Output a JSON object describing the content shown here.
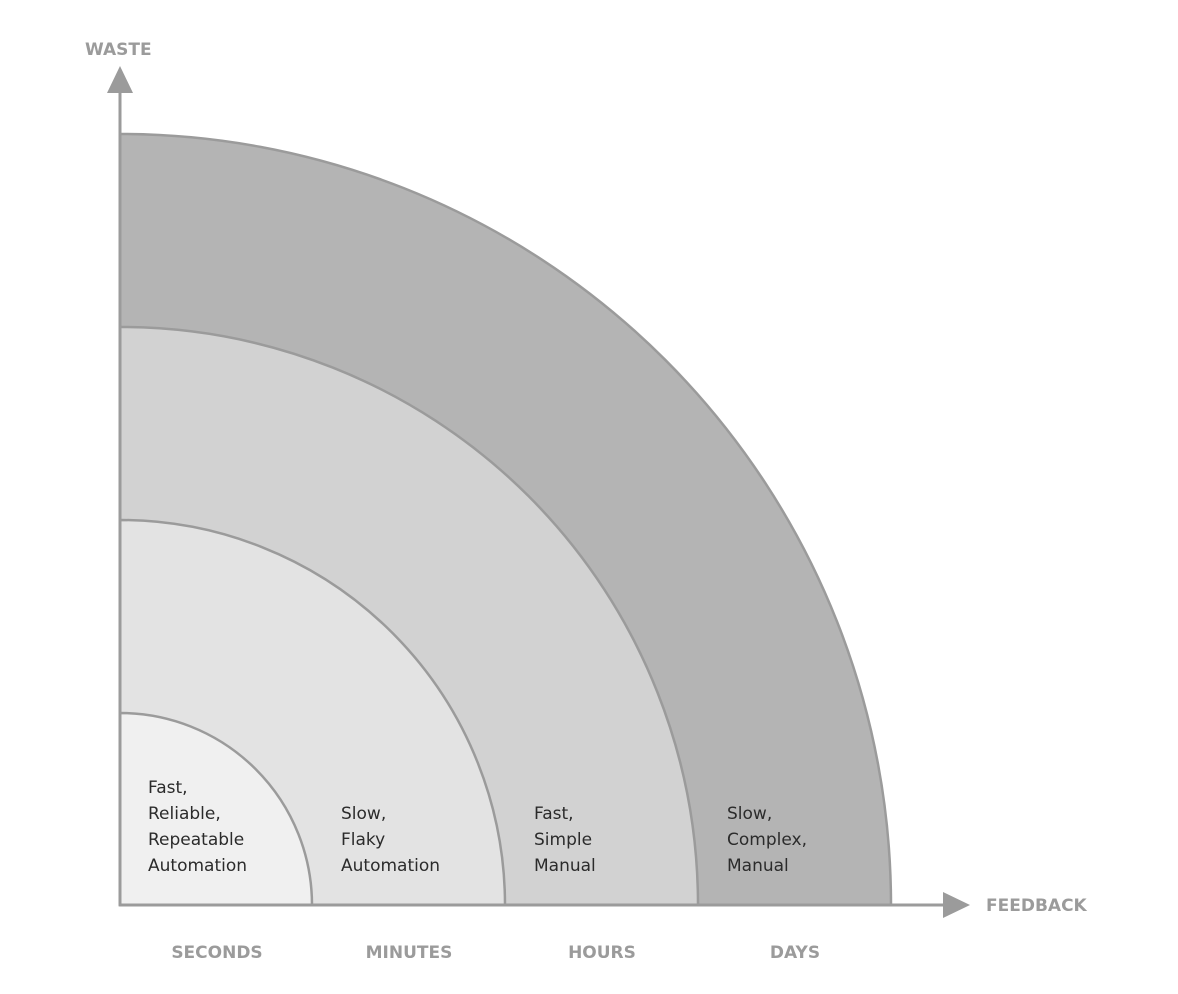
{
  "axes": {
    "y_title": "WASTE",
    "x_title": "FEEDBACK"
  },
  "bands": [
    {
      "time": "SECONDS",
      "lines": [
        "Fast,",
        "Reliable,",
        "Repeatable",
        "Automation"
      ],
      "fill": "#f0f0f0"
    },
    {
      "time": "MINUTES",
      "lines": [
        "Slow,",
        "Flaky",
        "Automation"
      ],
      "fill": "#e3e3e3"
    },
    {
      "time": "HOURS",
      "lines": [
        "Fast,",
        "Simple",
        "Manual"
      ],
      "fill": "#d2d2d2"
    },
    {
      "time": "DAYS",
      "lines": [
        "Slow,",
        "Complex,",
        "Manual"
      ],
      "fill": "#b4b4b4"
    }
  ],
  "colors": {
    "stroke": "#9b9b9b",
    "axis": "#9b9b9b",
    "label_text": "#2b2b2b",
    "axis_text": "#9b9b9b"
  }
}
